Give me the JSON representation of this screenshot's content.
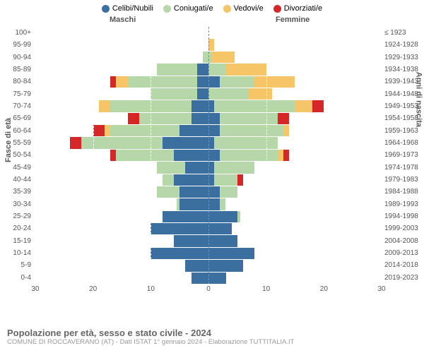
{
  "legend": {
    "items": [
      {
        "label": "Celibi/Nubili",
        "color": "#3a6fa0"
      },
      {
        "label": "Coniugati/e",
        "color": "#b6d7a8"
      },
      {
        "label": "Vedovi/e",
        "color": "#f6c568"
      },
      {
        "label": "Divorziati/e",
        "color": "#d62728"
      }
    ]
  },
  "gender": {
    "m": "Maschi",
    "f": "Femmine"
  },
  "axis": {
    "ylab_left": "Fasce di età",
    "ylab_right": "Anni di nascita",
    "xmax": 30,
    "ticks": [
      30,
      20,
      10,
      0,
      10,
      20,
      30
    ]
  },
  "colors": {
    "celibi": "#3a6fa0",
    "coniugati": "#b6d7a8",
    "vedovi": "#f6c568",
    "divorziati": "#d62728",
    "bg": "#ffffff",
    "grid": "#ffffff"
  },
  "age_groups": [
    {
      "label": "100+",
      "birth": "≤ 1923",
      "m": {
        "c": 0,
        "m": 0,
        "w": 0,
        "d": 0
      },
      "f": {
        "c": 0,
        "m": 0,
        "w": 0,
        "d": 0
      }
    },
    {
      "label": "95-99",
      "birth": "1924-1928",
      "m": {
        "c": 0,
        "m": 0,
        "w": 0,
        "d": 0
      },
      "f": {
        "c": 0,
        "m": 0,
        "w": 1,
        "d": 0
      }
    },
    {
      "label": "90-94",
      "birth": "1929-1933",
      "m": {
        "c": 0,
        "m": 1,
        "w": 0,
        "d": 0
      },
      "f": {
        "c": 0,
        "m": 0.5,
        "w": 4,
        "d": 0
      }
    },
    {
      "label": "85-89",
      "birth": "1934-1938",
      "m": {
        "c": 2,
        "m": 7,
        "w": 0,
        "d": 0
      },
      "f": {
        "c": 0,
        "m": 3,
        "w": 7,
        "d": 0
      }
    },
    {
      "label": "80-84",
      "birth": "1939-1943",
      "m": {
        "c": 2,
        "m": 12,
        "w": 2,
        "d": 1
      },
      "f": {
        "c": 2,
        "m": 6,
        "w": 7,
        "d": 0
      }
    },
    {
      "label": "75-79",
      "birth": "1944-1948",
      "m": {
        "c": 2,
        "m": 8,
        "w": 0,
        "d": 0
      },
      "f": {
        "c": 0,
        "m": 7,
        "w": 4,
        "d": 0
      }
    },
    {
      "label": "70-74",
      "birth": "1949-1953",
      "m": {
        "c": 3,
        "m": 14,
        "w": 2,
        "d": 0
      },
      "f": {
        "c": 1,
        "m": 14,
        "w": 3,
        "d": 2
      }
    },
    {
      "label": "65-69",
      "birth": "1954-1958",
      "m": {
        "c": 3,
        "m": 9,
        "w": 0,
        "d": 2
      },
      "f": {
        "c": 2,
        "m": 10,
        "w": 0,
        "d": 2
      }
    },
    {
      "label": "60-64",
      "birth": "1959-1963",
      "m": {
        "c": 5,
        "m": 12,
        "w": 1,
        "d": 2
      },
      "f": {
        "c": 2,
        "m": 11,
        "w": 1,
        "d": 0
      }
    },
    {
      "label": "55-59",
      "birth": "1964-1968",
      "m": {
        "c": 8,
        "m": 14,
        "w": 0,
        "d": 2
      },
      "f": {
        "c": 1,
        "m": 11,
        "w": 0,
        "d": 0
      }
    },
    {
      "label": "50-54",
      "birth": "1969-1973",
      "m": {
        "c": 6,
        "m": 10,
        "w": 0,
        "d": 1
      },
      "f": {
        "c": 2,
        "m": 10,
        "w": 1,
        "d": 1
      }
    },
    {
      "label": "45-49",
      "birth": "1974-1978",
      "m": {
        "c": 4,
        "m": 5,
        "w": 0,
        "d": 0
      },
      "f": {
        "c": 1,
        "m": 7,
        "w": 0,
        "d": 0
      }
    },
    {
      "label": "40-44",
      "birth": "1979-1983",
      "m": {
        "c": 6,
        "m": 2,
        "w": 0,
        "d": 0
      },
      "f": {
        "c": 1,
        "m": 4,
        "w": 0,
        "d": 1
      }
    },
    {
      "label": "35-39",
      "birth": "1984-1988",
      "m": {
        "c": 5,
        "m": 4,
        "w": 0,
        "d": 0
      },
      "f": {
        "c": 2,
        "m": 3,
        "w": 0,
        "d": 0
      }
    },
    {
      "label": "30-34",
      "birth": "1989-1993",
      "m": {
        "c": 5,
        "m": 0.5,
        "w": 0,
        "d": 0
      },
      "f": {
        "c": 2,
        "m": 1,
        "w": 0,
        "d": 0
      }
    },
    {
      "label": "25-29",
      "birth": "1994-1998",
      "m": {
        "c": 8,
        "m": 0,
        "w": 0,
        "d": 0
      },
      "f": {
        "c": 5,
        "m": 0.5,
        "w": 0,
        "d": 0
      }
    },
    {
      "label": "20-24",
      "birth": "1999-2003",
      "m": {
        "c": 10,
        "m": 0,
        "w": 0,
        "d": 0
      },
      "f": {
        "c": 4,
        "m": 0,
        "w": 0,
        "d": 0
      }
    },
    {
      "label": "15-19",
      "birth": "2004-2008",
      "m": {
        "c": 6,
        "m": 0,
        "w": 0,
        "d": 0
      },
      "f": {
        "c": 5,
        "m": 0,
        "w": 0,
        "d": 0
      }
    },
    {
      "label": "10-14",
      "birth": "2009-2013",
      "m": {
        "c": 10,
        "m": 0,
        "w": 0,
        "d": 0
      },
      "f": {
        "c": 8,
        "m": 0,
        "w": 0,
        "d": 0
      }
    },
    {
      "label": "5-9",
      "birth": "2014-2018",
      "m": {
        "c": 4,
        "m": 0,
        "w": 0,
        "d": 0
      },
      "f": {
        "c": 6,
        "m": 0,
        "w": 0,
        "d": 0
      }
    },
    {
      "label": "0-4",
      "birth": "2019-2023",
      "m": {
        "c": 3,
        "m": 0,
        "w": 0,
        "d": 0
      },
      "f": {
        "c": 3,
        "m": 0,
        "w": 0,
        "d": 0
      }
    }
  ],
  "footer": {
    "title": "Popolazione per età, sesso e stato civile - 2024",
    "subtitle": "COMUNE DI ROCCAVERANO (AT) - Dati ISTAT 1° gennaio 2024 - Elaborazione TUTTITALIA.IT"
  }
}
